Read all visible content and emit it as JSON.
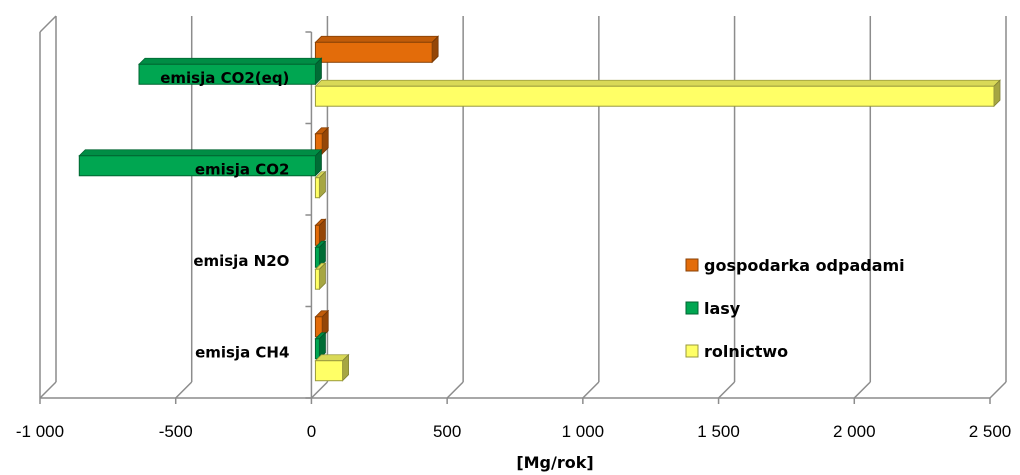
{
  "chart_data": {
    "type": "bar",
    "orientation": "horizontal",
    "categories": [
      "emisja CO2(eq)",
      "emisja CO2",
      "emisja N2O",
      "emisja CH4"
    ],
    "series": [
      {
        "name": "gospodarka odpadami",
        "color": "#E36C0A",
        "values": [
          430,
          25,
          10,
          25
        ]
      },
      {
        "name": "lasy",
        "color": "#00A651",
        "values": [
          -650,
          -870,
          5,
          5
        ]
      },
      {
        "name": "rolnictwo",
        "color": "#FFFF66",
        "values": [
          2500,
          5,
          5,
          100
        ]
      }
    ],
    "xlabel": "[Mg/rok]",
    "xlim": [
      -1000,
      2500
    ],
    "x_ticks": [
      -1000,
      -500,
      0,
      500,
      1000,
      1500,
      2000,
      2500
    ],
    "x_tick_labels": [
      "-1 000",
      "-500",
      "0",
      "500",
      "1 000",
      "1 500",
      "2 000",
      "2 500"
    ],
    "grid": true,
    "legend_position": "right"
  }
}
